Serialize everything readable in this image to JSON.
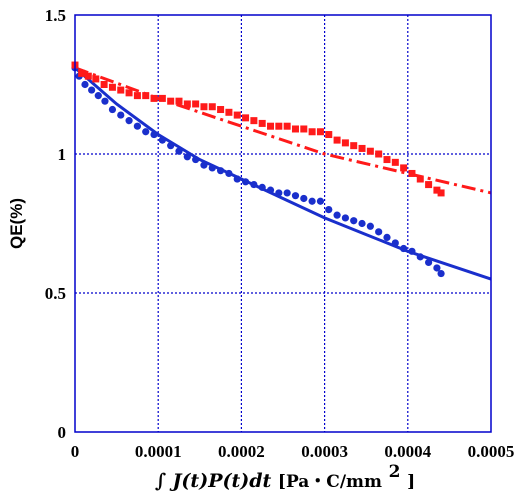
{
  "chart_data": {
    "type": "scatter",
    "xlabel_main": "∫ J(t)P(t)dt",
    "xlabel_units": "[Pa・C/mm",
    "xlabel_sup": "2",
    "xlabel_end": "]",
    "ylabel": "QE(%)",
    "xlim": [
      0,
      0.0005
    ],
    "ylim": [
      0,
      1.5
    ],
    "x_ticks": [
      {
        "value": 0,
        "label": "0"
      },
      {
        "value": 0.0001,
        "label": "0.0001"
      },
      {
        "value": 0.0002,
        "label": "0.0002"
      },
      {
        "value": 0.0003,
        "label": "0.0003"
      },
      {
        "value": 0.0004,
        "label": "0.0004"
      },
      {
        "value": 0.0005,
        "label": "0.0005"
      }
    ],
    "y_ticks": [
      {
        "value": 0,
        "label": "0"
      },
      {
        "value": 0.5,
        "label": "0.5"
      },
      {
        "value": 1,
        "label": "1"
      },
      {
        "value": 1.5,
        "label": "1.5"
      }
    ],
    "grid": true,
    "frame_color": "#0000cc",
    "grid_color": "#0000cc",
    "series": [
      {
        "marker": "circle",
        "color": "#1a2fcc",
        "x": [
          0,
          5e-06,
          1.2e-05,
          2e-05,
          2.8e-05,
          3.6e-05,
          4.5e-05,
          5.5e-05,
          6.5e-05,
          7.5e-05,
          8.5e-05,
          9.5e-05,
          0.000105,
          0.000115,
          0.000125,
          0.000135,
          0.000145,
          0.000155,
          0.000165,
          0.000175,
          0.000185,
          0.000195,
          0.000205,
          0.000215,
          0.000225,
          0.000235,
          0.000245,
          0.000255,
          0.000265,
          0.000275,
          0.000285,
          0.000295,
          0.000305,
          0.000315,
          0.000325,
          0.000335,
          0.000345,
          0.000355,
          0.000365,
          0.000375,
          0.000385,
          0.000395,
          0.000405,
          0.000415,
          0.000425,
          0.000435,
          0.00044
        ],
        "y": [
          1.31,
          1.28,
          1.25,
          1.23,
          1.21,
          1.19,
          1.16,
          1.14,
          1.12,
          1.1,
          1.08,
          1.07,
          1.05,
          1.03,
          1.01,
          0.99,
          0.98,
          0.96,
          0.95,
          0.94,
          0.93,
          0.91,
          0.9,
          0.89,
          0.88,
          0.87,
          0.86,
          0.86,
          0.85,
          0.84,
          0.83,
          0.83,
          0.8,
          0.78,
          0.77,
          0.76,
          0.75,
          0.74,
          0.72,
          0.7,
          0.68,
          0.66,
          0.65,
          0.63,
          0.61,
          0.59,
          0.57
        ]
      },
      {
        "marker": "square",
        "color": "#ff1a1a",
        "x": [
          0,
          8e-06,
          1.6e-05,
          2.5e-05,
          3.5e-05,
          4.5e-05,
          5.5e-05,
          6.5e-05,
          7.5e-05,
          8.5e-05,
          9.5e-05,
          0.000105,
          0.000115,
          0.000125,
          0.000135,
          0.000145,
          0.000155,
          0.000165,
          0.000175,
          0.000185,
          0.000195,
          0.000205,
          0.000215,
          0.000225,
          0.000235,
          0.000245,
          0.000255,
          0.000265,
          0.000275,
          0.000285,
          0.000295,
          0.000305,
          0.000315,
          0.000325,
          0.000335,
          0.000345,
          0.000355,
          0.000365,
          0.000375,
          0.000385,
          0.000395,
          0.000405,
          0.000415,
          0.000425,
          0.000435,
          0.00044
        ],
        "y": [
          1.32,
          1.29,
          1.28,
          1.27,
          1.25,
          1.24,
          1.23,
          1.22,
          1.21,
          1.21,
          1.2,
          1.2,
          1.19,
          1.19,
          1.18,
          1.18,
          1.17,
          1.17,
          1.16,
          1.15,
          1.14,
          1.13,
          1.12,
          1.11,
          1.1,
          1.1,
          1.1,
          1.09,
          1.09,
          1.08,
          1.08,
          1.07,
          1.05,
          1.04,
          1.03,
          1.02,
          1.01,
          1.0,
          0.98,
          0.97,
          0.95,
          0.93,
          0.91,
          0.89,
          0.87,
          0.86
        ]
      },
      {
        "type": "line",
        "style": "solid",
        "color": "#1a2fcc",
        "x": [
          0,
          5e-05,
          0.0001,
          0.00015,
          0.0002,
          0.00025,
          0.0003,
          0.00035,
          0.0004,
          0.00045,
          0.0005
        ],
        "y": [
          1.31,
          1.18,
          1.07,
          0.98,
          0.91,
          0.84,
          0.77,
          0.71,
          0.65,
          0.6,
          0.55
        ]
      },
      {
        "type": "line",
        "style": "dashdot",
        "color": "#ff1a1a",
        "x": [
          0,
          0.0001,
          0.0002,
          0.0003,
          0.0004,
          0.0005
        ],
        "y": [
          1.31,
          1.2,
          1.1,
          1.0,
          0.93,
          0.86
        ]
      }
    ]
  }
}
